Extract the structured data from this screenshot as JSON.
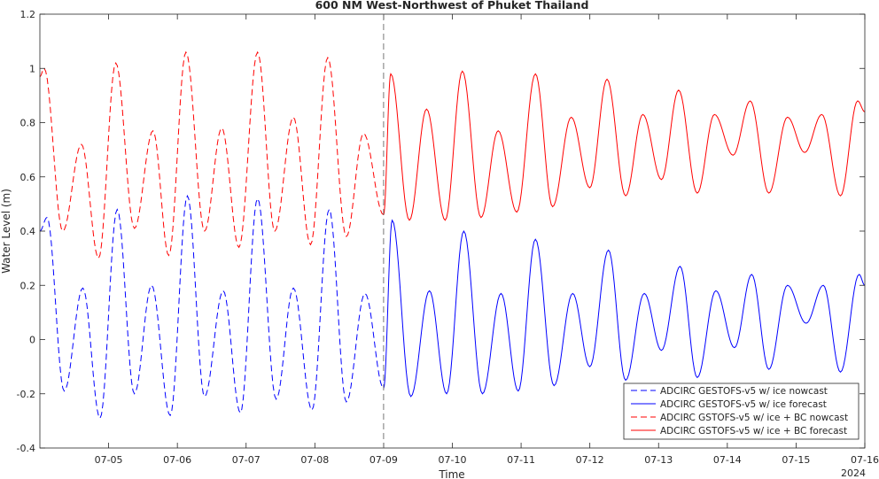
{
  "chart_data": {
    "type": "line",
    "title": "600 NM West-Northwest of Phuket Thailand",
    "xlabel": "Time",
    "ylabel": "Water Level (m)",
    "year_label": "2024",
    "xlim": [
      "2024-07-04",
      "2024-07-16"
    ],
    "ylim": [
      -0.4,
      1.2
    ],
    "yticks": [
      -0.4,
      -0.2,
      0,
      0.2,
      0.4,
      0.6,
      0.8,
      1,
      1.2
    ],
    "ytick_labels": [
      "-0.4",
      "-0.2",
      "0",
      "0.2",
      "0.4",
      "0.6",
      "0.8",
      "1",
      "1.2"
    ],
    "xticks": [
      "2024-07-05",
      "2024-07-06",
      "2024-07-07",
      "2024-07-08",
      "2024-07-09",
      "2024-07-10",
      "2024-07-11",
      "2024-07-12",
      "2024-07-13",
      "2024-07-14",
      "2024-07-15",
      "2024-07-16"
    ],
    "xtick_labels": [
      "07-05",
      "07-06",
      "07-07",
      "07-08",
      "07-09",
      "07-10",
      "07-11",
      "07-12",
      "07-13",
      "07-14",
      "07-15",
      "07-16"
    ],
    "nowcast_end": "2024-07-09",
    "grid": false,
    "legend_position": "bottom-right",
    "series": [
      {
        "name": "ADCIRC GESTOFS-v5 w/ ice nowcast",
        "color": "#0000ff",
        "dash": true,
        "x": [
          "2024-07-04 00:00",
          "2024-07-04 02:30",
          "2024-07-04 08:30",
          "2024-07-04 15:00",
          "2024-07-04 21:00",
          "2024-07-05 03:00",
          "2024-07-05 09:00",
          "2024-07-05 15:00",
          "2024-07-05 21:30",
          "2024-07-06 03:30",
          "2024-07-06 09:30",
          "2024-07-06 16:00",
          "2024-07-06 22:00",
          "2024-07-07 04:00",
          "2024-07-07 10:30",
          "2024-07-07 16:30",
          "2024-07-07 23:00",
          "2024-07-08 05:00",
          "2024-07-08 11:00",
          "2024-07-08 17:30",
          "2024-07-09 00:00"
        ],
        "values": [
          0.4,
          0.45,
          -0.19,
          0.19,
          -0.29,
          0.48,
          -0.2,
          0.2,
          -0.28,
          0.53,
          -0.21,
          0.18,
          -0.27,
          0.52,
          -0.22,
          0.19,
          -0.26,
          0.48,
          -0.23,
          0.17,
          -0.18
        ]
      },
      {
        "name": "ADCIRC GESTOFS-v5 w/ ice forecast",
        "color": "#0000ff",
        "dash": false,
        "x": [
          "2024-07-09 00:00",
          "2024-07-09 03:00",
          "2024-07-09 09:30",
          "2024-07-09 16:00",
          "2024-07-09 22:00",
          "2024-07-10 04:00",
          "2024-07-10 10:30",
          "2024-07-10 17:00",
          "2024-07-10 23:00",
          "2024-07-11 05:00",
          "2024-07-11 11:30",
          "2024-07-11 18:00",
          "2024-07-12 00:00",
          "2024-07-12 06:30",
          "2024-07-12 12:30",
          "2024-07-12 19:00",
          "2024-07-13 01:00",
          "2024-07-13 07:30",
          "2024-07-13 13:30",
          "2024-07-13 20:00",
          "2024-07-14 02:30",
          "2024-07-14 08:30",
          "2024-07-14 14:30",
          "2024-07-14 21:00",
          "2024-07-15 03:30",
          "2024-07-15 09:30",
          "2024-07-15 15:30",
          "2024-07-15 22:00",
          "2024-07-16 00:00"
        ],
        "values": [
          -0.18,
          0.44,
          -0.21,
          0.18,
          -0.2,
          0.4,
          -0.2,
          0.17,
          -0.19,
          0.37,
          -0.17,
          0.17,
          -0.1,
          0.33,
          -0.15,
          0.17,
          -0.04,
          0.27,
          -0.14,
          0.18,
          -0.03,
          0.24,
          -0.11,
          0.2,
          0.06,
          0.2,
          -0.12,
          0.24,
          0.2
        ]
      },
      {
        "name": "ADCIRC GSTOFS-v5 w/ ice + BC nowcast",
        "color": "#ff0000",
        "dash": true,
        "x": [
          "2024-07-04 00:00",
          "2024-07-04 01:30",
          "2024-07-04 08:00",
          "2024-07-04 14:30",
          "2024-07-04 20:30",
          "2024-07-05 02:30",
          "2024-07-05 09:00",
          "2024-07-05 15:30",
          "2024-07-05 21:00",
          "2024-07-06 03:00",
          "2024-07-06 09:30",
          "2024-07-06 15:30",
          "2024-07-06 21:30",
          "2024-07-07 04:00",
          "2024-07-07 10:00",
          "2024-07-07 16:30",
          "2024-07-07 22:30",
          "2024-07-08 04:30",
          "2024-07-08 11:00",
          "2024-07-08 17:00",
          "2024-07-09 00:00"
        ],
        "values": [
          0.97,
          1.0,
          0.4,
          0.72,
          0.3,
          1.02,
          0.41,
          0.77,
          0.31,
          1.06,
          0.4,
          0.78,
          0.34,
          1.06,
          0.4,
          0.82,
          0.35,
          1.04,
          0.38,
          0.76,
          0.46
        ]
      },
      {
        "name": "ADCIRC GSTOFS-v5 w/ ice + BC forecast",
        "color": "#ff0000",
        "dash": false,
        "x": [
          "2024-07-09 00:00",
          "2024-07-09 02:30",
          "2024-07-09 09:00",
          "2024-07-09 15:00",
          "2024-07-09 21:30",
          "2024-07-10 03:30",
          "2024-07-10 10:00",
          "2024-07-10 16:00",
          "2024-07-10 22:30",
          "2024-07-11 05:00",
          "2024-07-11 11:00",
          "2024-07-11 17:30",
          "2024-07-12 00:00",
          "2024-07-12 06:00",
          "2024-07-12 12:30",
          "2024-07-12 18:30",
          "2024-07-13 01:00",
          "2024-07-13 07:00",
          "2024-07-13 13:30",
          "2024-07-13 19:30",
          "2024-07-14 02:00",
          "2024-07-14 08:00",
          "2024-07-14 14:30",
          "2024-07-14 21:00",
          "2024-07-15 03:00",
          "2024-07-15 09:00",
          "2024-07-15 15:30",
          "2024-07-15 21:30",
          "2024-07-16 00:00"
        ],
        "values": [
          0.46,
          0.98,
          0.44,
          0.85,
          0.44,
          0.99,
          0.45,
          0.77,
          0.47,
          0.98,
          0.49,
          0.82,
          0.56,
          0.96,
          0.53,
          0.83,
          0.59,
          0.92,
          0.54,
          0.83,
          0.68,
          0.88,
          0.54,
          0.82,
          0.69,
          0.83,
          0.53,
          0.88,
          0.84
        ]
      }
    ]
  }
}
